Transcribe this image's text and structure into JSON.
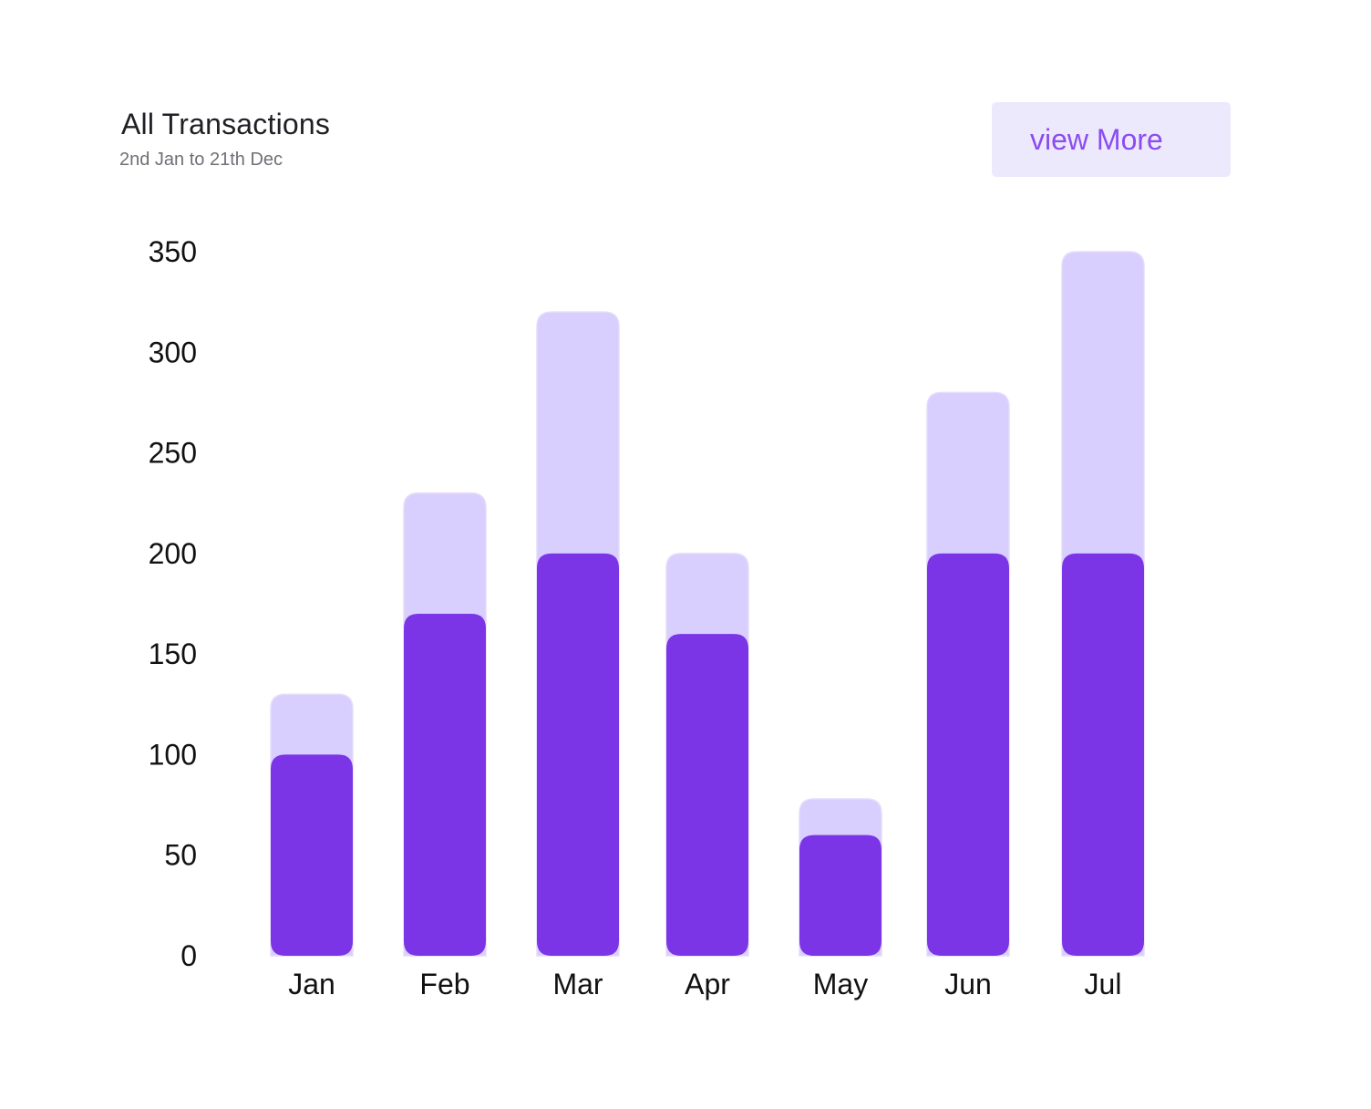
{
  "header": {
    "title": "All Transactions",
    "subtitle": "2nd Jan to 21th Dec",
    "view_more_label": "view More"
  },
  "colors": {
    "bar_total": "#d8cffe",
    "bar_value": "#7b35e6",
    "button_bg": "#ece9fd",
    "button_text": "#8b4cf0"
  },
  "chart_data": {
    "type": "bar",
    "stacked": true,
    "categories": [
      "Jan",
      "Feb",
      "Mar",
      "Apr",
      "May",
      "Jun",
      "Jul"
    ],
    "series": [
      {
        "values": [
          100,
          170,
          200,
          160,
          60,
          200,
          200
        ]
      },
      {
        "values": [
          30,
          60,
          120,
          40,
          18,
          80,
          150
        ]
      }
    ],
    "y_ticks": [
      0,
      50,
      100,
      150,
      200,
      250,
      300,
      350
    ],
    "ylim": [
      0,
      350
    ],
    "grid": false,
    "legend": "none"
  }
}
